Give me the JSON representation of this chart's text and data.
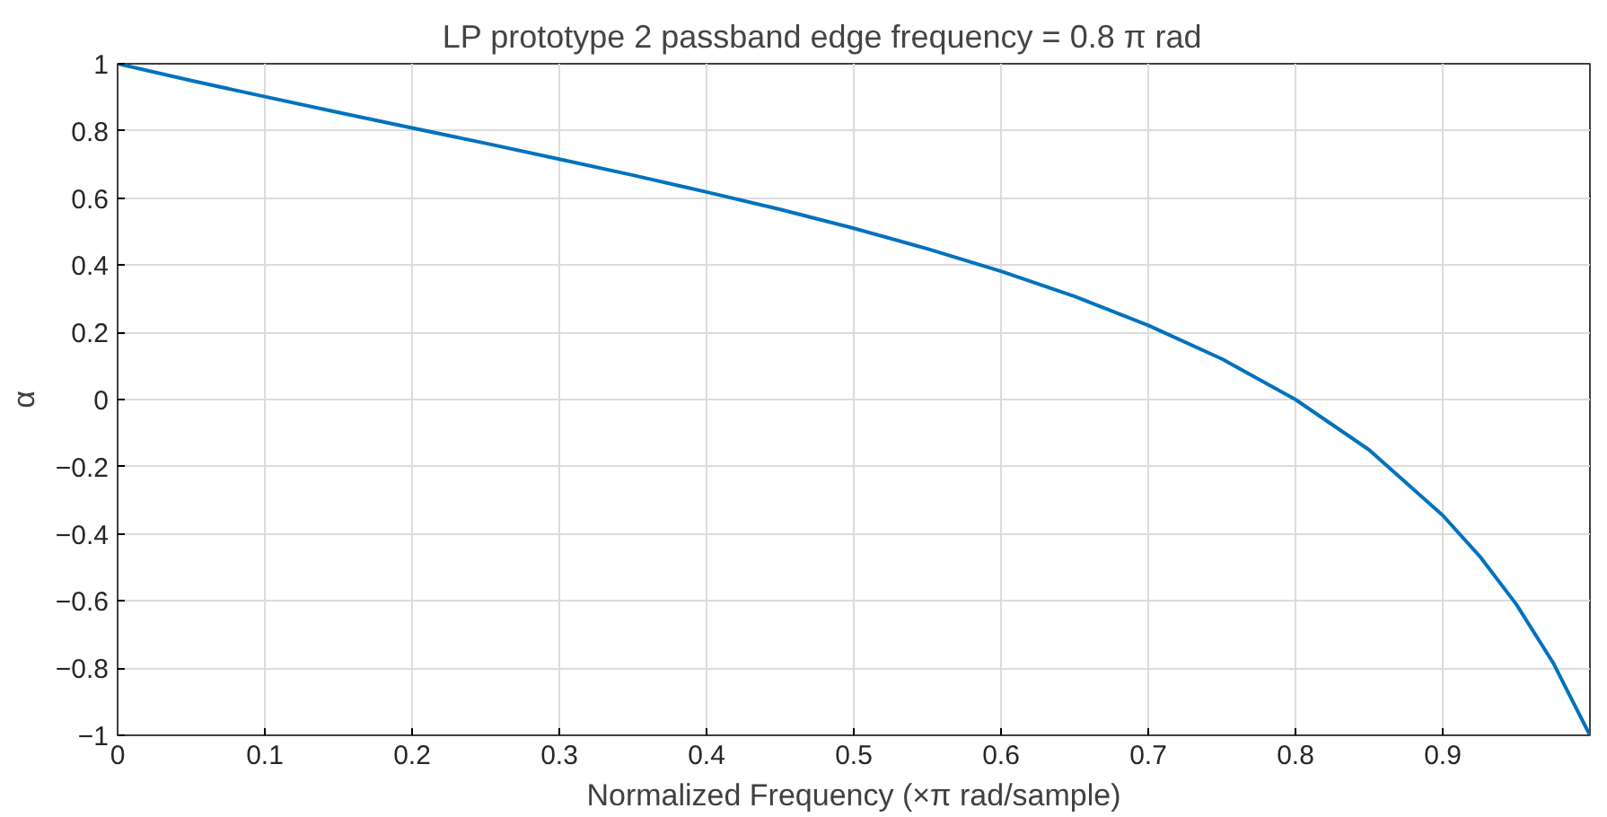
{
  "chart_data": {
    "type": "line",
    "title": "LP prototype 2 passband edge frequency =  0.8       π rad",
    "xlabel": "Normalized Frequency (×π rad/sample)",
    "ylabel": "α",
    "x": [
      0,
      0.05,
      0.1,
      0.15,
      0.2,
      0.25,
      0.3,
      0.35,
      0.4,
      0.45,
      0.5,
      0.55,
      0.6,
      0.65,
      0.7,
      0.75,
      0.8,
      0.85,
      0.9,
      0.925,
      0.95,
      0.975,
      1.0
    ],
    "series": [
      {
        "color": "#0072bd",
        "values": [
          1,
          0.95,
          0.902,
          0.855,
          0.809,
          0.763,
          0.716,
          0.668,
          0.618,
          0.566,
          0.51,
          0.449,
          0.382,
          0.307,
          0.221,
          0.121,
          0,
          -0.15,
          -0.345,
          -0.466,
          -0.61,
          -0.784,
          -1
        ]
      }
    ],
    "xlim": [
      0,
      1
    ],
    "ylim": [
      -1,
      1
    ],
    "xticks": [
      0,
      0.1,
      0.2,
      0.3,
      0.4,
      0.5,
      0.6,
      0.7,
      0.8,
      0.9
    ],
    "yticks": [
      -1,
      -0.8,
      -0.6,
      -0.4,
      -0.2,
      0,
      0.2,
      0.4,
      0.6,
      0.8,
      1
    ],
    "grid": true,
    "marker": "none",
    "line_style": "solid"
  }
}
